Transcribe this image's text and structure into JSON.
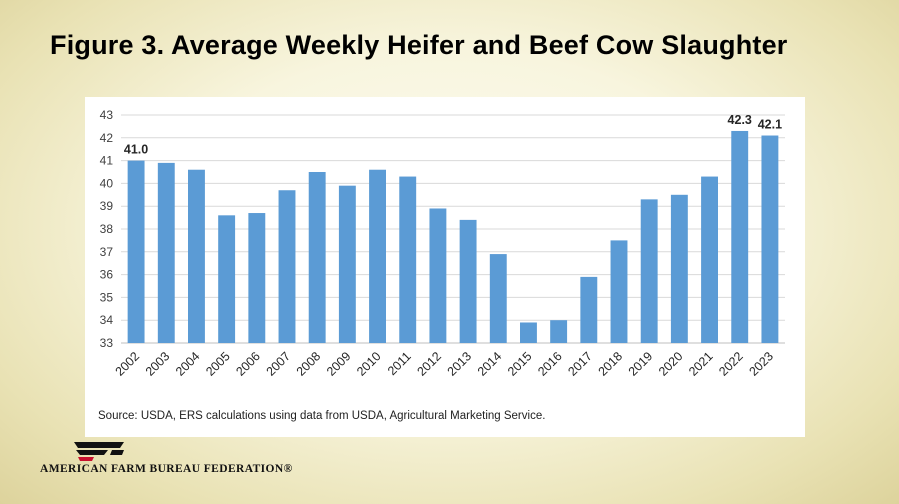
{
  "slide": {
    "title": "Figure 3. Average Weekly Heifer and Beef Cow Slaughter"
  },
  "chart_data": {
    "type": "bar",
    "title": "",
    "xlabel": "",
    "ylabel": "",
    "categories": [
      "2002",
      "2003",
      "2004",
      "2005",
      "2006",
      "2007",
      "2008",
      "2009",
      "2010",
      "2011",
      "2012",
      "2013",
      "2014",
      "2015",
      "2016",
      "2017",
      "2018",
      "2019",
      "2020",
      "2021",
      "2022",
      "2023"
    ],
    "values": [
      41.0,
      40.9,
      40.6,
      38.6,
      38.7,
      39.7,
      40.5,
      39.9,
      40.6,
      40.3,
      38.9,
      38.4,
      36.9,
      33.9,
      34.0,
      35.9,
      37.5,
      39.3,
      39.5,
      40.3,
      42.3,
      42.1
    ],
    "data_labels": [
      {
        "category": "2002",
        "text": "41.0"
      },
      {
        "category": "2022",
        "text": "42.3"
      },
      {
        "category": "2023",
        "text": "42.1"
      }
    ],
    "ylim": [
      33,
      43
    ],
    "yticks": [
      33,
      34,
      35,
      36,
      37,
      38,
      39,
      40,
      41,
      42,
      43
    ],
    "grid": true,
    "bar_color": "#5b9bd5"
  },
  "source": "Source: USDA, ERS calculations using data from USDA, Agricultural Marketing Service.",
  "logo": {
    "mark": "FB",
    "text": "AMERICAN FARM BUREAU FEDERATION®"
  }
}
